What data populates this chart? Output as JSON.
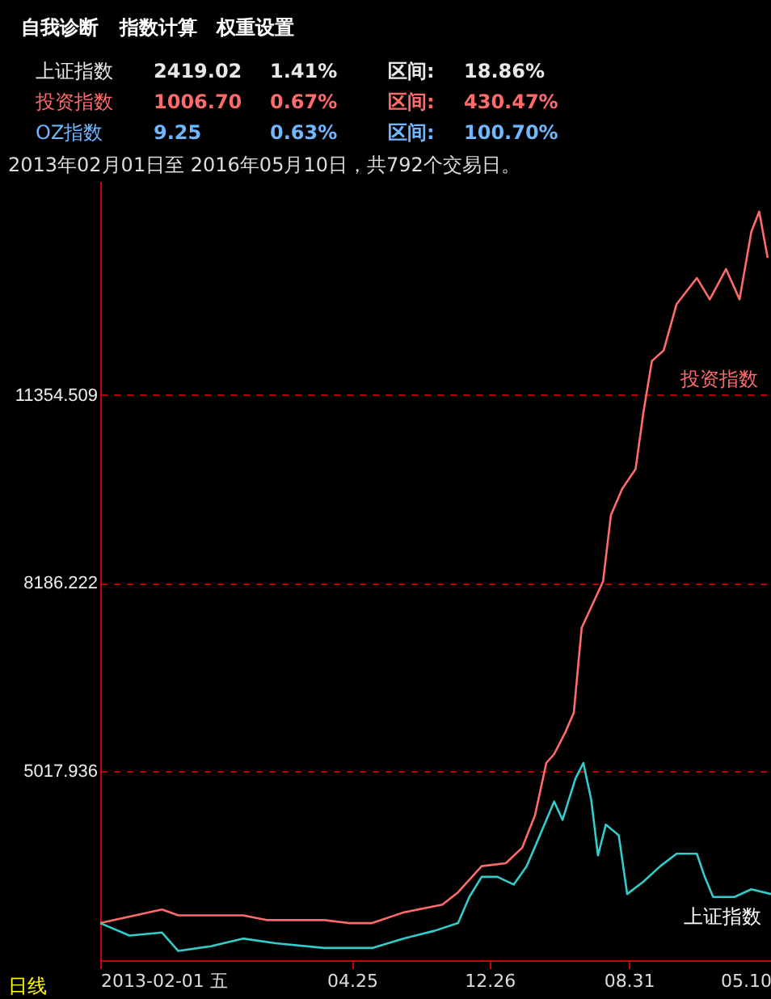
{
  "chart_data": {
    "type": "line",
    "subtitle": "2013年02月01日至 2016年05月10日，共792个交易日。",
    "annotations": [
      "自我诊断",
      "指数计算",
      "权重设置",
      "上证指数",
      "2419.02",
      "1.41%",
      "区间:",
      "18.86%",
      "投资指数",
      "1006.70",
      "0.67%",
      "区间:",
      "430.47%",
      "OZ指数",
      "9.25",
      "0.63%",
      "区间:",
      "100.70%",
      "日线"
    ],
    "series": [
      {
        "name": "投资指数",
        "color": "#ff6b6b",
        "x": [
          "2013-02-01",
          "2013-05-22",
          "2013-06-20",
          "2013-10-13",
          "2013-11-26",
          "2014-03-07",
          "2014-04-19",
          "2014-05-31",
          "2014-07-26",
          "2014-10-03",
          "2014-10-31",
          "2014-12-12",
          "2015-01-24",
          "2015-02-22",
          "2015-03-17",
          "2015-04-06",
          "2015-04-20",
          "2015-05-10",
          "2015-05-25",
          "2015-06-08",
          "2015-07-16",
          "2015-07-30",
          "2015-08-19",
          "2015-09-12",
          "2015-09-26",
          "2015-10-11",
          "2015-11-01",
          "2015-11-24",
          "2015-12-30",
          "2016-01-22",
          "2016-02-20",
          "2016-03-15",
          "2016-04-05",
          "2016-04-19",
          "2016-05-04"
        ],
        "values": [
          2450,
          2680,
          2580,
          2580,
          2500,
          2500,
          2450,
          2450,
          2630,
          2760,
          2970,
          3410,
          3460,
          3720,
          4270,
          5150,
          5300,
          5670,
          6000,
          7430,
          8210,
          9330,
          9770,
          10110,
          11070,
          11930,
          12110,
          12890,
          13330,
          12970,
          13480,
          12970,
          14110,
          14450,
          13670
        ]
      },
      {
        "name": "上证指数",
        "color": "#33cccc",
        "x": [
          "2013-02-01",
          "2013-03-25",
          "2013-05-22",
          "2013-06-20",
          "2013-08-17",
          "2013-10-13",
          "2013-12-10",
          "2014-03-07",
          "2014-05-31",
          "2014-07-26",
          "2014-09-19",
          "2014-10-31",
          "2014-11-20",
          "2014-12-12",
          "2015-01-09",
          "2015-02-07",
          "2015-03-02",
          "2015-03-22",
          "2015-04-20",
          "2015-05-05",
          "2015-05-28",
          "2015-06-11",
          "2015-06-25",
          "2015-07-07",
          "2015-07-21",
          "2015-08-13",
          "2015-08-28",
          "2015-09-26",
          "2015-10-26",
          "2015-11-24",
          "2015-12-30",
          "2016-01-13",
          "2016-01-28",
          "2016-03-06",
          "2016-04-05",
          "2016-05-10"
        ],
        "values": [
          2450,
          2240,
          2290,
          1980,
          2060,
          2190,
          2110,
          2030,
          2030,
          2190,
          2320,
          2450,
          2890,
          3230,
          3230,
          3100,
          3410,
          3850,
          4500,
          4190,
          4890,
          5150,
          4530,
          3590,
          4110,
          3930,
          2940,
          3150,
          3410,
          3620,
          3620,
          3230,
          2890,
          2890,
          3020,
          2940
        ]
      }
    ],
    "xlim": [
      "2013-02-01",
      "2016-05-10"
    ],
    "xticks": [
      {
        "value": "2013-02-01",
        "label": "2013-02-01 五"
      },
      {
        "value": "2014-04-25",
        "label": "04.25"
      },
      {
        "value": "2014-12-26",
        "label": "12.26"
      },
      {
        "value": "2015-08-31",
        "label": "08.31"
      },
      {
        "value": "2016-05-10",
        "label": "05.10"
      }
    ],
    "ylim": [
      1824,
      14965
    ],
    "yticks": [
      5017.936,
      8186.222,
      11354.509
    ],
    "grid": "y",
    "legend": false
  }
}
